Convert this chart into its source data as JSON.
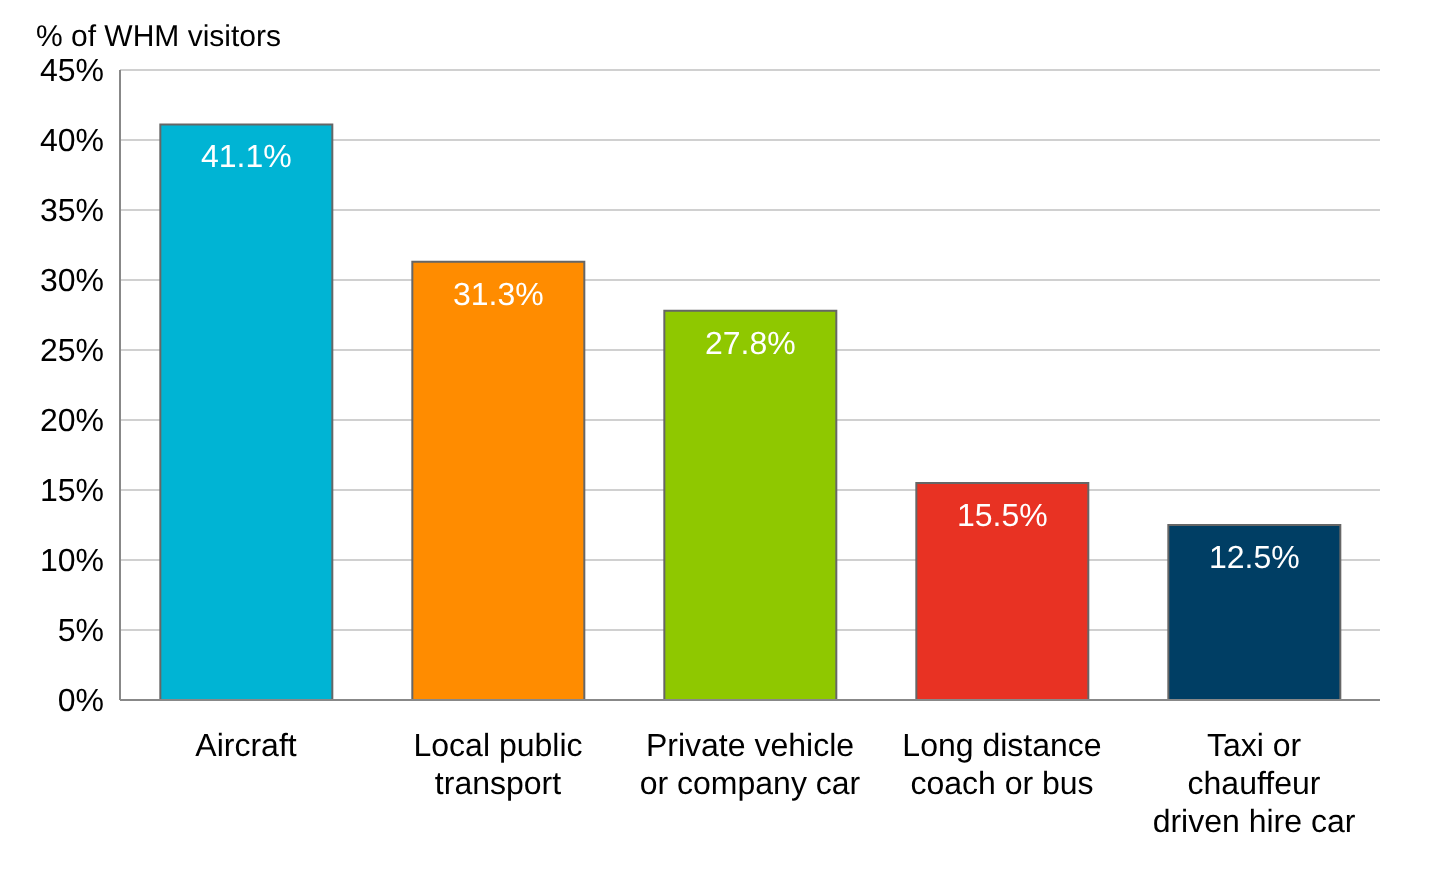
{
  "chart_data": {
    "type": "bar",
    "ylabel": "% of WHM visitors",
    "categories": [
      "Aircraft",
      "Local public transport",
      "Private vehicle or company car",
      "Long distance coach or bus",
      "Taxi or chauffeur driven hire car"
    ],
    "values": [
      41.1,
      31.3,
      27.8,
      15.5,
      12.5
    ],
    "colors": [
      "#00b4d4",
      "#ff8c00",
      "#8fc800",
      "#e83223",
      "#003e64"
    ],
    "value_labels": [
      "41.1%",
      "31.3%",
      "27.8%",
      "15.5%",
      "12.5%"
    ],
    "ylim": [
      0,
      45
    ],
    "yticks": [
      {
        "value": 0,
        "label": "0%"
      },
      {
        "value": 5,
        "label": "5%"
      },
      {
        "value": 10,
        "label": "10%"
      },
      {
        "value": 15,
        "label": "15%"
      },
      {
        "value": 20,
        "label": "20%"
      },
      {
        "value": 25,
        "label": "25%"
      },
      {
        "value": 30,
        "label": "30%"
      },
      {
        "value": 35,
        "label": "35%"
      },
      {
        "value": 40,
        "label": "40%"
      },
      {
        "value": 45,
        "label": "45%"
      }
    ],
    "grid": "y"
  }
}
